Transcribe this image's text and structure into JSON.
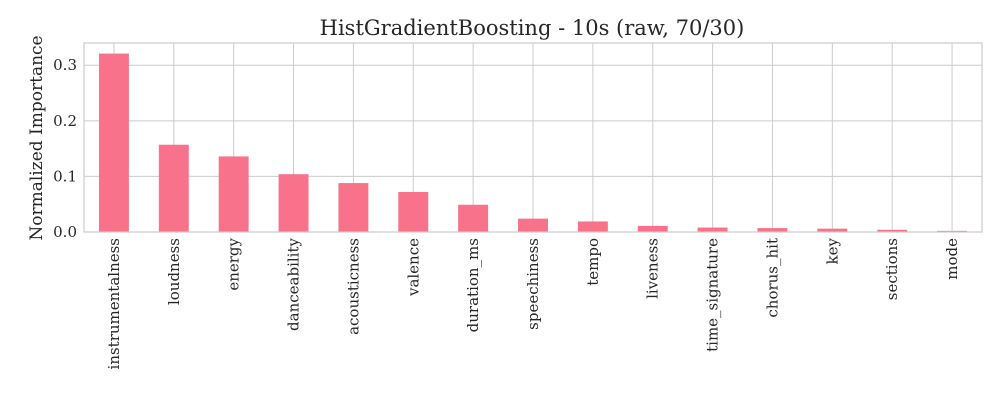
{
  "chart_data": {
    "type": "bar",
    "title": "HistGradientBoosting - 10s (raw, 70/30)",
    "xlabel": "",
    "ylabel": "Normalized Importance",
    "categories": [
      "instrumentalness",
      "loudness",
      "energy",
      "danceability",
      "acousticness",
      "valence",
      "duration_ms",
      "speechiness",
      "tempo",
      "liveness",
      "time_signature",
      "chorus_hit",
      "key",
      "sections",
      "mode"
    ],
    "values": [
      0.321,
      0.157,
      0.136,
      0.104,
      0.088,
      0.072,
      0.049,
      0.024,
      0.019,
      0.011,
      0.008,
      0.007,
      0.006,
      0.004,
      0.002
    ],
    "ylim": [
      0,
      0.34
    ],
    "yticks": [
      0.0,
      0.1,
      0.2,
      0.3
    ],
    "ytick_labels": [
      "0.0",
      "0.1",
      "0.2",
      "0.3"
    ],
    "grid": true,
    "bar_color": "#f7728a"
  }
}
